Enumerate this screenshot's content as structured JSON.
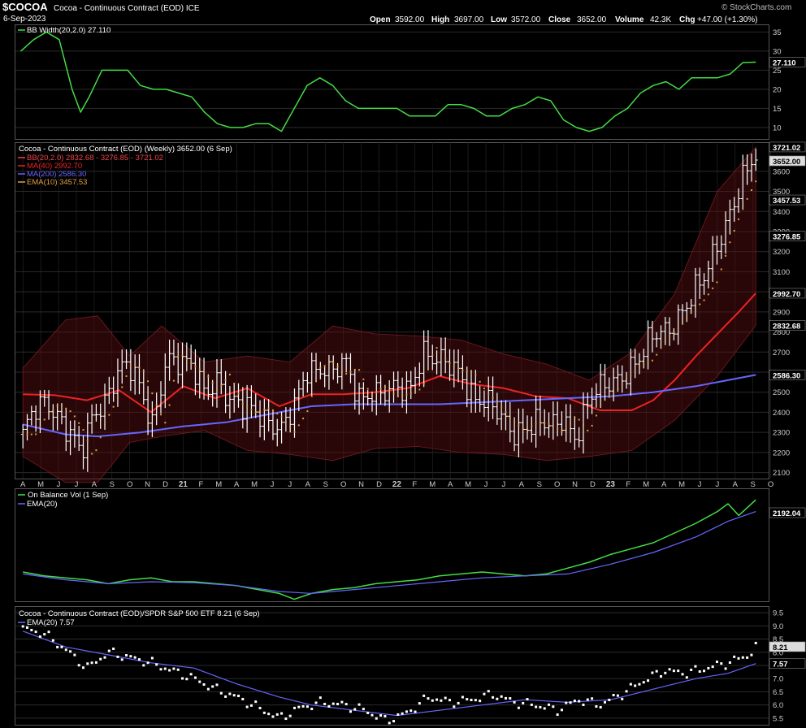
{
  "header": {
    "symbol": "$COCOA",
    "name": "Cocoa - Continuous Contract (EOD) ICE",
    "date": "6-Sep-2023",
    "watermark": "© StockCharts.com",
    "open_label": "Open",
    "open": "3592.00",
    "high_label": "High",
    "high": "3697.00",
    "low_label": "Low",
    "low": "3572.00",
    "close_label": "Close",
    "close": "3652.00",
    "volume_label": "Volume",
    "volume": "42.3K",
    "chg_label": "Chg",
    "chg": "+47.00 (+1.30%)"
  },
  "colors": {
    "background": "#000000",
    "grid": "#2a2a2a",
    "price_bars": "#ffffff",
    "bb_width": "#44dd44",
    "ma40": "#ee2222",
    "ma200": "#6666ff",
    "ema10": "#e0a040",
    "obv": "#44dd44",
    "ema20": "#6666ff",
    "bb_band": "#5a0f14"
  },
  "chart_data": [
    {
      "type": "line",
      "panel": "bb_width",
      "legend": "BB Width(20,2.0) 27.110",
      "current_value_label": "27.110",
      "current_value": 27.11,
      "yticks": [
        10,
        15,
        20,
        25,
        30,
        35
      ],
      "ylim": [
        7,
        37
      ],
      "x": [
        2020.24,
        2020.3,
        2020.36,
        2020.42,
        2020.48,
        2020.52,
        2020.56,
        2020.62,
        2020.68,
        2020.74,
        2020.8,
        2020.86,
        2020.92,
        2020.98,
        2021.04,
        2021.1,
        2021.16,
        2021.22,
        2021.28,
        2021.34,
        2021.4,
        2021.46,
        2021.52,
        2021.58,
        2021.64,
        2021.7,
        2021.76,
        2021.82,
        2021.88,
        2021.94,
        2022.0,
        2022.06,
        2022.12,
        2022.18,
        2022.24,
        2022.3,
        2022.36,
        2022.42,
        2022.48,
        2022.54,
        2022.6,
        2022.66,
        2022.72,
        2022.78,
        2022.84,
        2022.9,
        2022.96,
        2023.02,
        2023.08,
        2023.14,
        2023.2,
        2023.26,
        2023.32,
        2023.38,
        2023.44,
        2023.5,
        2023.56,
        2023.62,
        2023.68
      ],
      "values": [
        30,
        33,
        35,
        33,
        20,
        14,
        18,
        25,
        25,
        25,
        21,
        20,
        20,
        19,
        18,
        14,
        11,
        10,
        10,
        11,
        11,
        9,
        15,
        21,
        23,
        21,
        17,
        15,
        15,
        15,
        15,
        13,
        13,
        13,
        16,
        16,
        15,
        13,
        13,
        15,
        16,
        18,
        17,
        12,
        10,
        9,
        10,
        13,
        15,
        19,
        21,
        22,
        20,
        23,
        23,
        23,
        24,
        27,
        27.11
      ]
    },
    {
      "type": "ohlc",
      "panel": "price",
      "legend_title": "Cocoa - Continuous Contract (EOD) (Weekly) 3652.00 (6 Sep)",
      "legend": [
        "BB(20,2.0) 2832.68 - 3276.85 - 3721.02",
        "MA(40) 2992.70",
        "MA(200) 2586.30",
        "EMA(10) 3457.53"
      ],
      "yticks": [
        2100,
        2200,
        2300,
        2400,
        2500,
        2600,
        2700,
        2800,
        2900,
        3000,
        3100,
        3200,
        3300,
        3400,
        3500,
        3600
      ],
      "ylim": [
        2070,
        3745
      ],
      "current_labels": [
        "3721.02",
        "3652.00",
        "3457.53",
        "3276.85",
        "2992.70",
        "2832.68",
        "2586.30"
      ],
      "current_values": [
        3721.02,
        3652.0,
        3457.53,
        3276.85,
        2992.7,
        2832.68,
        2586.3
      ],
      "xticks": [
        "A",
        "M",
        "J",
        "J",
        "A",
        "S",
        "O",
        "N",
        "D",
        "21",
        "F",
        "M",
        "A",
        "M",
        "J",
        "J",
        "A",
        "S",
        "O",
        "N",
        "D",
        "22",
        "F",
        "M",
        "A",
        "M",
        "J",
        "J",
        "A",
        "S",
        "O",
        "N",
        "D",
        "23",
        "F",
        "M",
        "A",
        "M",
        "J",
        "J",
        "A",
        "S",
        "O"
      ],
      "close_path": {
        "x": [
          2020.25,
          2020.3,
          2020.36,
          2020.42,
          2020.48,
          2020.52,
          2020.58,
          2020.63,
          2020.7,
          2020.76,
          2020.82,
          2020.86,
          2020.92,
          2020.98,
          2021.05,
          2021.1,
          2021.16,
          2021.22,
          2021.28,
          2021.34,
          2021.4,
          2021.46,
          2021.52,
          2021.58,
          2021.64,
          2021.7,
          2021.76,
          2021.82,
          2021.88,
          2021.94,
          2022.0,
          2022.06,
          2022.12,
          2022.18,
          2022.24,
          2022.3,
          2022.36,
          2022.42,
          2022.48,
          2022.54,
          2022.6,
          2022.66,
          2022.72,
          2022.78,
          2022.84,
          2022.9,
          2022.96,
          2023.02,
          2023.08,
          2023.14,
          2023.2,
          2023.26,
          2023.32,
          2023.38,
          2023.44,
          2023.5,
          2023.56,
          2023.62,
          2023.68
        ],
        "y": [
          2290,
          2380,
          2440,
          2400,
          2300,
          2170,
          2360,
          2460,
          2650,
          2600,
          2420,
          2340,
          2700,
          2640,
          2590,
          2510,
          2590,
          2440,
          2400,
          2420,
          2380,
          2300,
          2400,
          2620,
          2650,
          2590,
          2620,
          2480,
          2530,
          2480,
          2490,
          2520,
          2730,
          2650,
          2610,
          2600,
          2500,
          2440,
          2360,
          2310,
          2350,
          2340,
          2300,
          2380,
          2300,
          2450,
          2500,
          2570,
          2630,
          2660,
          2760,
          2820,
          2900,
          2960,
          3050,
          3250,
          3420,
          3550,
          3652
        ]
      },
      "ma40": {
        "x": [
          2020.25,
          2020.4,
          2020.55,
          2020.7,
          2020.85,
          2021.0,
          2021.15,
          2021.3,
          2021.45,
          2021.6,
          2021.75,
          2021.9,
          2022.05,
          2022.2,
          2022.35,
          2022.5,
          2022.65,
          2022.8,
          2022.95,
          2023.1,
          2023.2,
          2023.3,
          2023.4,
          2023.5,
          2023.6,
          2023.68
        ],
        "y": [
          2490,
          2485,
          2460,
          2510,
          2400,
          2530,
          2470,
          2520,
          2430,
          2490,
          2490,
          2500,
          2520,
          2580,
          2540,
          2520,
          2480,
          2470,
          2410,
          2410,
          2460,
          2560,
          2680,
          2790,
          2900,
          2992.7
        ]
      },
      "ma200": {
        "x": [
          2020.25,
          2020.45,
          2020.6,
          2020.8,
          2021.0,
          2021.2,
          2021.4,
          2021.6,
          2021.8,
          2022.0,
          2022.2,
          2022.4,
          2022.6,
          2022.8,
          2023.0,
          2023.2,
          2023.4,
          2023.55,
          2023.68
        ],
        "y": [
          2340,
          2290,
          2280,
          2300,
          2330,
          2350,
          2390,
          2430,
          2440,
          2440,
          2440,
          2450,
          2460,
          2470,
          2480,
          2500,
          2530,
          2560,
          2586.3
        ]
      },
      "bb_upper": {
        "x": [
          2020.25,
          2020.45,
          2020.6,
          2020.75,
          2020.9,
          2021.1,
          2021.3,
          2021.5,
          2021.7,
          2021.9,
          2022.1,
          2022.3,
          2022.5,
          2022.7,
          2022.9,
          2023.1,
          2023.3,
          2023.5,
          2023.68
        ],
        "y": [
          2620,
          2860,
          2880,
          2680,
          2830,
          2650,
          2680,
          2650,
          2830,
          2790,
          2780,
          2760,
          2690,
          2640,
          2560,
          2700,
          2990,
          3500,
          3721.02
        ]
      },
      "bb_lower": {
        "x": [
          2020.25,
          2020.45,
          2020.6,
          2020.75,
          2020.9,
          2021.1,
          2021.3,
          2021.5,
          2021.7,
          2021.9,
          2022.1,
          2022.3,
          2022.5,
          2022.7,
          2022.9,
          2023.1,
          2023.3,
          2023.5,
          2023.68
        ],
        "y": [
          2180,
          2050,
          2050,
          2250,
          2280,
          2310,
          2210,
          2190,
          2160,
          2220,
          2230,
          2200,
          2190,
          2160,
          2180,
          2210,
          2360,
          2580,
          2832.68
        ]
      }
    },
    {
      "type": "line",
      "panel": "obv",
      "legend": [
        "On Balance Vol (1 Sep)",
        "EMA(20)"
      ],
      "current_value_label": "2192.04",
      "obv": {
        "x": [
          2020.25,
          2020.35,
          2020.45,
          2020.55,
          2020.65,
          2020.75,
          2020.85,
          2020.95,
          2021.05,
          2021.15,
          2021.25,
          2021.35,
          2021.45,
          2021.52,
          2021.6,
          2021.7,
          2021.8,
          2021.9,
          2022.0,
          2022.1,
          2022.2,
          2022.3,
          2022.4,
          2022.5,
          2022.6,
          2022.7,
          2022.8,
          2022.9,
          2023.0,
          2023.1,
          2023.2,
          2023.3,
          2023.4,
          2023.5,
          2023.55,
          2023.6,
          2023.64,
          2023.68
        ],
        "y": [
          30,
          26,
          24,
          22,
          18,
          22,
          24,
          20,
          20,
          18,
          16,
          12,
          8,
          2,
          8,
          12,
          14,
          18,
          20,
          22,
          26,
          28,
          30,
          28,
          26,
          28,
          34,
          40,
          48,
          54,
          60,
          70,
          80,
          92,
          100,
          88,
          96,
          104
        ]
      },
      "ema20": {
        "x": [
          2020.25,
          2020.45,
          2020.65,
          2020.85,
          2021.05,
          2021.25,
          2021.45,
          2021.6,
          2021.8,
          2022.0,
          2022.2,
          2022.4,
          2022.6,
          2022.8,
          2023.0,
          2023.2,
          2023.4,
          2023.55,
          2023.68
        ],
        "y": [
          28,
          22,
          18,
          20,
          19,
          16,
          10,
          8,
          12,
          16,
          20,
          24,
          26,
          28,
          38,
          50,
          66,
          82,
          92
        ]
      }
    },
    {
      "type": "scatter",
      "panel": "ratio",
      "legend": [
        "Cocoa - Continuous Contract (EOD)/SPDR S&P 500 ETF 8.21 (6 Sep)",
        "EMA(20) 7.57"
      ],
      "yticks": [
        5.5,
        6.0,
        6.5,
        7.0,
        7.5,
        8.0,
        8.5,
        9.0,
        9.5
      ],
      "ylim": [
        5.25,
        9.75
      ],
      "current_labels": [
        "8.21",
        "7.57"
      ],
      "current_values": [
        8.21,
        7.57
      ],
      "ratio": {
        "x": [
          2020.25,
          2020.35,
          2020.45,
          2020.55,
          2020.65,
          2020.75,
          2020.85,
          2020.95,
          2021.05,
          2021.15,
          2021.25,
          2021.35,
          2021.45,
          2021.55,
          2021.65,
          2021.75,
          2021.85,
          2021.95,
          2022.05,
          2022.15,
          2022.25,
          2022.35,
          2022.45,
          2022.55,
          2022.65,
          2022.75,
          2022.85,
          2022.95,
          2023.05,
          2023.15,
          2023.25,
          2023.35,
          2023.45,
          2023.55,
          2023.65,
          2023.68
        ],
        "y": [
          8.9,
          8.7,
          8.1,
          7.4,
          8.0,
          7.8,
          7.6,
          7.3,
          7.0,
          6.6,
          6.3,
          5.9,
          5.5,
          5.9,
          6.1,
          6.0,
          5.8,
          5.4,
          5.7,
          6.3,
          6.1,
          6.2,
          6.4,
          6.1,
          6.0,
          5.8,
          6.2,
          6.0,
          6.4,
          6.9,
          7.3,
          7.2,
          7.4,
          7.6,
          7.9,
          8.21
        ]
      },
      "ema20": {
        "x": [
          2020.25,
          2020.45,
          2020.65,
          2020.85,
          2021.05,
          2021.25,
          2021.45,
          2021.6,
          2021.8,
          2022.0,
          2022.2,
          2022.4,
          2022.6,
          2022.8,
          2023.0,
          2023.2,
          2023.4,
          2023.55,
          2023.68
        ],
        "y": [
          8.8,
          8.2,
          7.9,
          7.6,
          7.4,
          6.8,
          6.3,
          6.0,
          5.8,
          5.6,
          5.8,
          6.0,
          6.2,
          6.1,
          6.2,
          6.6,
          7.0,
          7.2,
          7.57
        ]
      }
    }
  ]
}
